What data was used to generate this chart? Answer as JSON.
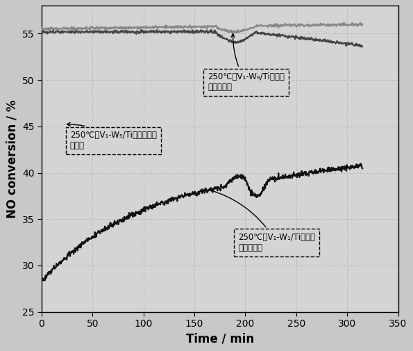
{
  "xlabel": "Time / min",
  "ylabel": "NO conversion / %",
  "xlim": [
    0,
    350
  ],
  "ylim": [
    25,
    58
  ],
  "xticks": [
    0,
    50,
    100,
    150,
    200,
    250,
    300,
    350
  ],
  "yticks": [
    25,
    30,
    35,
    40,
    45,
    50,
    55
  ],
  "bg_color": "#c8c8c8",
  "ax_bg_color": "#d4d4d4",
  "line_w1_color": "#111111",
  "line_w5_color": "#444444",
  "line_w9_color": "#888888",
  "figsize": [
    5.95,
    5.05
  ],
  "dpi": 100,
  "ann_w9_text1": "250℃时V₁-W₉/Ti催化剂",
  "ann_w9_text2": "硬中毒活性",
  "ann_w5_text1": "250℃时V₁-W₅/Ti催化剂硬中",
  "ann_w5_text2": "毒活性",
  "ann_w1_text1": "250℃时V₁-W₁/Ti催化剂",
  "ann_w1_text2": "硬中毒活性"
}
